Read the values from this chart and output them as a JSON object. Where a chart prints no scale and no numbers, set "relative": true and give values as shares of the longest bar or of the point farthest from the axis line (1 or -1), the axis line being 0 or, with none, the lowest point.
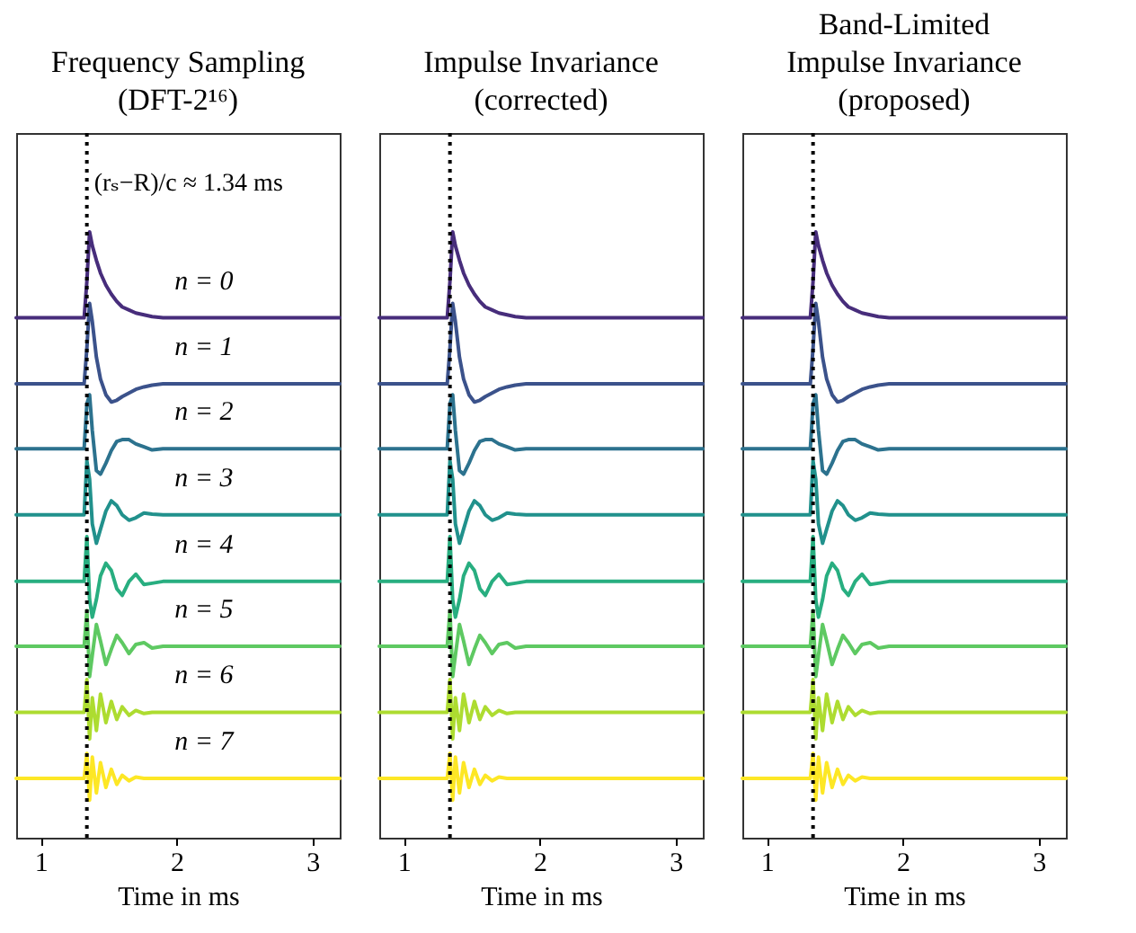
{
  "chart_data": [
    {
      "type": "line",
      "title": "Frequency Sampling\n(DFT-2¹⁶)",
      "xlabel": "Time in ms",
      "xlim": [
        0.82,
        3.2
      ],
      "xticks": [
        1,
        2,
        3
      ],
      "relative": true,
      "x": [
        0.82,
        1.32,
        1.34,
        1.36,
        1.38,
        1.41,
        1.44,
        1.48,
        1.52,
        1.56,
        1.6,
        1.65,
        1.7,
        1.76,
        1.82,
        1.9,
        3.2
      ],
      "ref_lines": [
        {
          "axis": "x",
          "value": 1.34,
          "label": "(rₛ−R)/c ≈ 1.34 ms",
          "color": "#000000",
          "line_style": "dotted"
        }
      ],
      "series": [
        {
          "name": "n = 0",
          "color": "#472d7b",
          "values": [
            0.858,
            0.858,
            0.918,
            1.0,
            0.977,
            0.953,
            0.932,
            0.912,
            0.897,
            0.885,
            0.876,
            0.871,
            0.866,
            0.863,
            0.86,
            0.858,
            0.858
          ]
        },
        {
          "name": "n = 1",
          "color": "#3b528b",
          "values": [
            0.749,
            0.749,
            0.808,
            0.882,
            0.852,
            0.793,
            0.757,
            0.731,
            0.719,
            0.722,
            0.728,
            0.734,
            0.74,
            0.744,
            0.747,
            0.749,
            0.749
          ]
        },
        {
          "name": "n = 2",
          "color": "#2c728e",
          "values": [
            0.642,
            0.642,
            0.716,
            0.731,
            0.672,
            0.606,
            0.6,
            0.618,
            0.639,
            0.654,
            0.657,
            0.657,
            0.65,
            0.645,
            0.64,
            0.642,
            0.642
          ]
        },
        {
          "name": "n = 3",
          "color": "#21918c",
          "values": [
            0.533,
            0.533,
            0.622,
            0.592,
            0.518,
            0.486,
            0.509,
            0.539,
            0.556,
            0.548,
            0.533,
            0.524,
            0.528,
            0.536,
            0.534,
            0.533,
            0.533
          ]
        },
        {
          "name": "n = 4",
          "color": "#28ae80",
          "values": [
            0.423,
            0.423,
            0.497,
            0.393,
            0.364,
            0.393,
            0.432,
            0.453,
            0.441,
            0.411,
            0.4,
            0.423,
            0.435,
            0.418,
            0.42,
            0.423,
            0.423
          ]
        },
        {
          "name": "n = 5",
          "color": "#5ec962",
          "values": [
            0.316,
            0.316,
            0.375,
            0.266,
            0.301,
            0.352,
            0.325,
            0.286,
            0.311,
            0.334,
            0.322,
            0.304,
            0.319,
            0.322,
            0.313,
            0.316,
            0.316
          ]
        },
        {
          "name": "n = 6",
          "color": "#addc30",
          "values": [
            0.207,
            0.207,
            0.261,
            0.163,
            0.231,
            0.177,
            0.237,
            0.19,
            0.225,
            0.195,
            0.216,
            0.202,
            0.21,
            0.205,
            0.207,
            0.207,
            0.207
          ]
        },
        {
          "name": "n = 7",
          "color": "#fde725",
          "values": [
            0.098,
            0.098,
            0.139,
            0.062,
            0.133,
            0.074,
            0.124,
            0.083,
            0.113,
            0.088,
            0.103,
            0.094,
            0.1,
            0.098,
            0.098,
            0.098,
            0.098
          ]
        }
      ]
    },
    {
      "type": "line",
      "title": "Impulse Invariance\n(corrected)",
      "xlabel": "Time in ms",
      "xlim": [
        0.82,
        3.2
      ],
      "xticks": [
        1,
        2,
        3
      ],
      "relative": true,
      "x": [
        0.82,
        1.32,
        1.34,
        1.36,
        1.38,
        1.41,
        1.44,
        1.48,
        1.52,
        1.56,
        1.6,
        1.65,
        1.7,
        1.76,
        1.82,
        1.9,
        3.2
      ],
      "ref_lines": [
        {
          "axis": "x",
          "value": 1.34,
          "color": "#000000",
          "line_style": "dotted"
        }
      ],
      "series": [
        {
          "color": "#472d7b",
          "values": [
            0.858,
            0.858,
            0.918,
            1.0,
            0.977,
            0.953,
            0.932,
            0.912,
            0.897,
            0.885,
            0.876,
            0.871,
            0.866,
            0.863,
            0.86,
            0.858,
            0.858
          ]
        },
        {
          "color": "#3b528b",
          "values": [
            0.749,
            0.749,
            0.808,
            0.882,
            0.852,
            0.793,
            0.757,
            0.731,
            0.719,
            0.722,
            0.728,
            0.734,
            0.74,
            0.744,
            0.747,
            0.749,
            0.749
          ]
        },
        {
          "color": "#2c728e",
          "values": [
            0.642,
            0.642,
            0.716,
            0.731,
            0.672,
            0.606,
            0.6,
            0.618,
            0.639,
            0.654,
            0.657,
            0.657,
            0.65,
            0.645,
            0.64,
            0.642,
            0.642
          ]
        },
        {
          "color": "#21918c",
          "values": [
            0.533,
            0.533,
            0.622,
            0.592,
            0.518,
            0.486,
            0.509,
            0.539,
            0.556,
            0.548,
            0.533,
            0.524,
            0.528,
            0.536,
            0.534,
            0.533,
            0.533
          ]
        },
        {
          "color": "#28ae80",
          "values": [
            0.423,
            0.423,
            0.497,
            0.393,
            0.364,
            0.393,
            0.432,
            0.453,
            0.441,
            0.411,
            0.4,
            0.423,
            0.435,
            0.418,
            0.42,
            0.423,
            0.423
          ]
        },
        {
          "color": "#5ec962",
          "values": [
            0.316,
            0.316,
            0.375,
            0.266,
            0.301,
            0.352,
            0.325,
            0.286,
            0.311,
            0.334,
            0.322,
            0.304,
            0.319,
            0.322,
            0.313,
            0.316,
            0.316
          ]
        },
        {
          "color": "#addc30",
          "values": [
            0.207,
            0.207,
            0.261,
            0.163,
            0.231,
            0.177,
            0.237,
            0.19,
            0.225,
            0.195,
            0.216,
            0.202,
            0.21,
            0.205,
            0.207,
            0.207,
            0.207
          ]
        },
        {
          "color": "#fde725",
          "values": [
            0.098,
            0.098,
            0.139,
            0.062,
            0.133,
            0.074,
            0.124,
            0.083,
            0.113,
            0.088,
            0.103,
            0.094,
            0.1,
            0.098,
            0.098,
            0.098,
            0.098
          ]
        }
      ]
    },
    {
      "type": "line",
      "title": "Band-Limited\nImpulse Invariance\n(proposed)",
      "xlabel": "Time in ms",
      "xlim": [
        0.82,
        3.2
      ],
      "xticks": [
        1,
        2,
        3
      ],
      "relative": true,
      "x": [
        0.82,
        1.32,
        1.34,
        1.36,
        1.38,
        1.41,
        1.44,
        1.48,
        1.52,
        1.56,
        1.6,
        1.65,
        1.7,
        1.76,
        1.82,
        1.9,
        3.2
      ],
      "ref_lines": [
        {
          "axis": "x",
          "value": 1.34,
          "color": "#000000",
          "line_style": "dotted"
        }
      ],
      "series": [
        {
          "color": "#472d7b",
          "values": [
            0.858,
            0.858,
            0.918,
            1.0,
            0.977,
            0.953,
            0.932,
            0.912,
            0.897,
            0.885,
            0.876,
            0.871,
            0.866,
            0.863,
            0.86,
            0.858,
            0.858
          ]
        },
        {
          "color": "#3b528b",
          "values": [
            0.749,
            0.749,
            0.808,
            0.882,
            0.852,
            0.793,
            0.757,
            0.731,
            0.719,
            0.722,
            0.728,
            0.734,
            0.74,
            0.744,
            0.747,
            0.749,
            0.749
          ]
        },
        {
          "color": "#2c728e",
          "values": [
            0.642,
            0.642,
            0.716,
            0.731,
            0.672,
            0.606,
            0.6,
            0.618,
            0.639,
            0.654,
            0.657,
            0.657,
            0.65,
            0.645,
            0.64,
            0.642,
            0.642
          ]
        },
        {
          "color": "#21918c",
          "values": [
            0.533,
            0.533,
            0.622,
            0.592,
            0.518,
            0.486,
            0.509,
            0.539,
            0.556,
            0.548,
            0.533,
            0.524,
            0.528,
            0.536,
            0.534,
            0.533,
            0.533
          ]
        },
        {
          "color": "#28ae80",
          "values": [
            0.423,
            0.423,
            0.497,
            0.393,
            0.364,
            0.393,
            0.432,
            0.453,
            0.441,
            0.411,
            0.4,
            0.423,
            0.435,
            0.418,
            0.42,
            0.423,
            0.423
          ]
        },
        {
          "color": "#5ec962",
          "values": [
            0.316,
            0.316,
            0.375,
            0.266,
            0.301,
            0.352,
            0.325,
            0.286,
            0.311,
            0.334,
            0.322,
            0.304,
            0.319,
            0.322,
            0.313,
            0.316,
            0.316
          ]
        },
        {
          "color": "#addc30",
          "values": [
            0.207,
            0.207,
            0.261,
            0.163,
            0.231,
            0.177,
            0.237,
            0.19,
            0.225,
            0.195,
            0.216,
            0.202,
            0.21,
            0.205,
            0.207,
            0.207,
            0.207
          ]
        },
        {
          "color": "#fde725",
          "values": [
            0.098,
            0.098,
            0.139,
            0.062,
            0.133,
            0.074,
            0.124,
            0.083,
            0.113,
            0.088,
            0.103,
            0.094,
            0.1,
            0.098,
            0.098,
            0.098,
            0.098
          ]
        }
      ]
    }
  ]
}
